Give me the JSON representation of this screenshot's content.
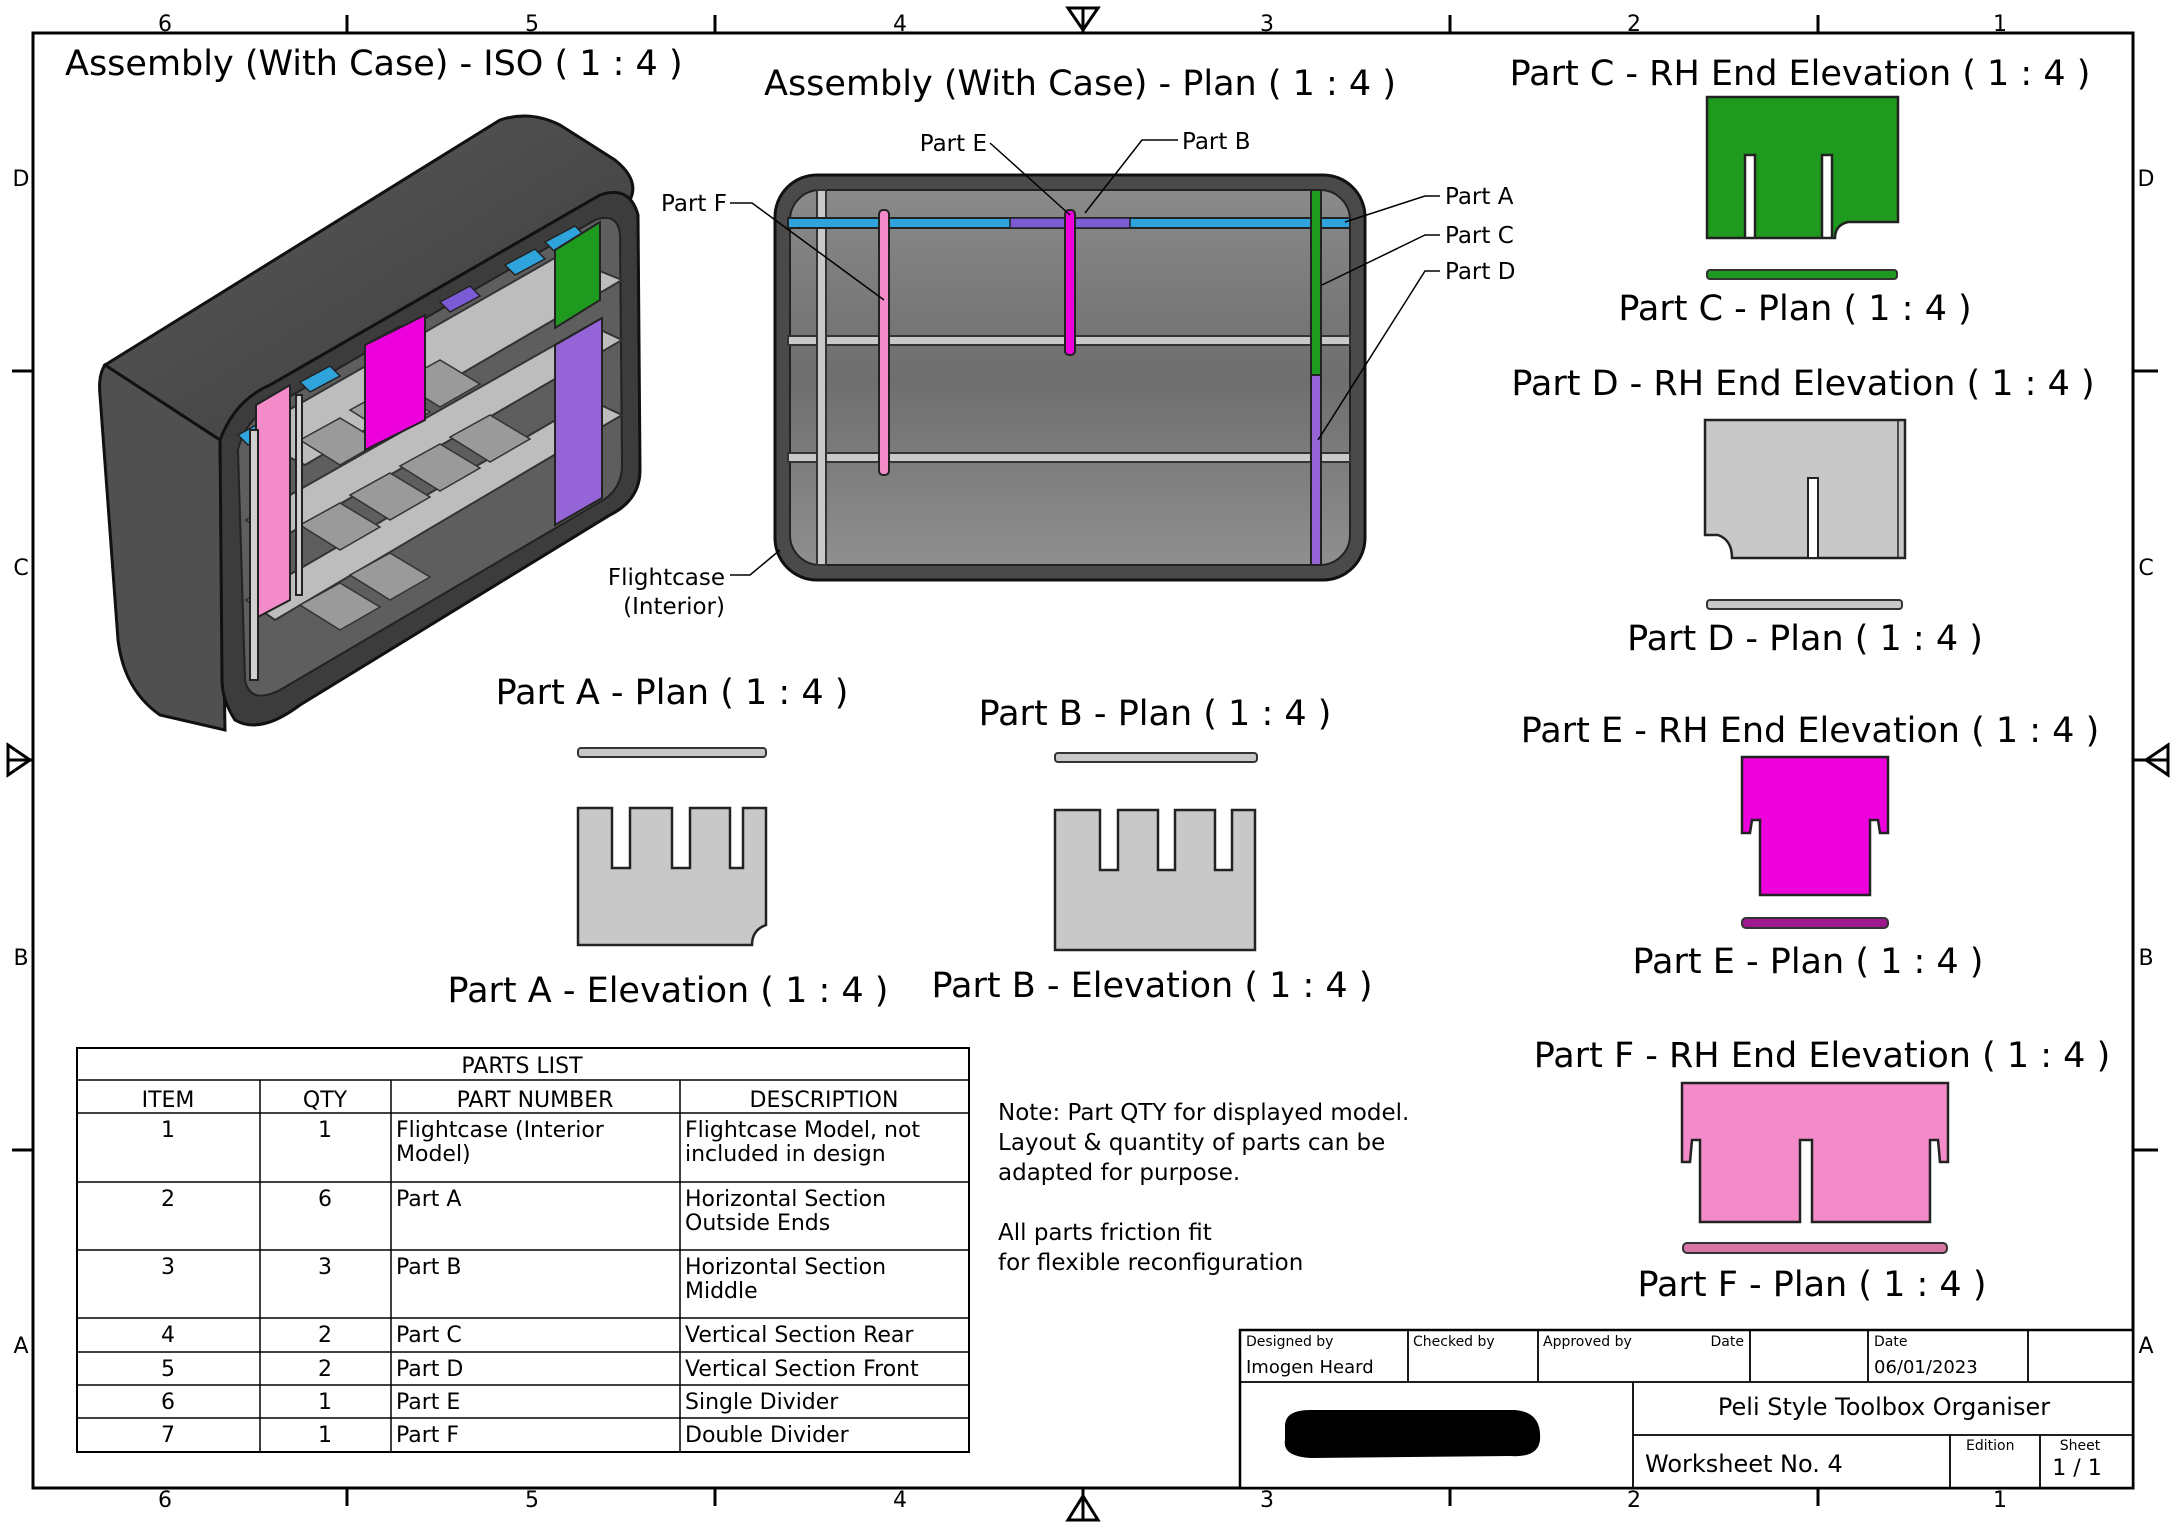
{
  "zones": {
    "columns": [
      "6",
      "5",
      "4",
      "3",
      "2",
      "1"
    ],
    "rows": [
      "D",
      "C",
      "B",
      "A"
    ]
  },
  "views": {
    "iso_title": "Assembly (With Case) - ISO ( 1 : 4 )",
    "plan_title": "Assembly (With Case) - Plan ( 1 : 4 )",
    "partA_plan": "Part A - Plan ( 1 : 4 )",
    "partA_elev": "Part A - Elevation ( 1 : 4 )",
    "partB_plan": "Part B - Plan ( 1 : 4 )",
    "partB_elev": "Part B - Elevation ( 1 : 4 )",
    "partC_end": "Part C - RH End Elevation ( 1 : 4 )",
    "partC_plan": "Part C - Plan  ( 1 : 4 )",
    "partD_end": "Part D - RH End Elevation ( 1 : 4 )",
    "partD_plan": "Part D - Plan ( 1 : 4 )",
    "partE_end": "Part E - RH End Elevation ( 1 : 4 )",
    "partE_plan": "Part E - Plan ( 1 : 4 )",
    "partF_end": "Part F - RH End Elevation ( 1 : 4 )",
    "partF_plan": "Part F - Plan ( 1 : 4 )"
  },
  "callouts": {
    "part_a": "Part A",
    "part_b": "Part B",
    "part_c": "Part C",
    "part_d": "Part D",
    "part_e": "Part E",
    "part_f": "Part F",
    "flightcase_1": "Flightcase",
    "flightcase_2": "(Interior)"
  },
  "colors": {
    "part_a": "#2fa3dc",
    "part_b": "#7b5cd6",
    "part_c": "#1e9a1e",
    "part_d": "#9565d8",
    "part_e": "#ee00dd",
    "part_f": "#f28bc8",
    "grey_part": "#c8c8c8",
    "case": "#4a4a4a"
  },
  "parts_list": {
    "title": "PARTS LIST",
    "headers": [
      "ITEM",
      "QTY",
      "PART NUMBER",
      "DESCRIPTION"
    ],
    "rows": [
      {
        "item": "1",
        "qty": "1",
        "part": [
          "Flightcase (Interior",
          "Model)"
        ],
        "desc": [
          "Flightcase Model, not",
          "included in design"
        ]
      },
      {
        "item": "2",
        "qty": "6",
        "part": [
          "Part A"
        ],
        "desc": [
          "Horizontal Section",
          "Outside Ends"
        ]
      },
      {
        "item": "3",
        "qty": "3",
        "part": [
          "Part B"
        ],
        "desc": [
          "Horizontal Section",
          "Middle"
        ]
      },
      {
        "item": "4",
        "qty": "2",
        "part": [
          "Part C"
        ],
        "desc": [
          "Vertical Section Rear"
        ]
      },
      {
        "item": "5",
        "qty": "2",
        "part": [
          "Part D"
        ],
        "desc": [
          "Vertical Section Front"
        ]
      },
      {
        "item": "6",
        "qty": "1",
        "part": [
          "Part E"
        ],
        "desc": [
          "Single Divider"
        ]
      },
      {
        "item": "7",
        "qty": "1",
        "part": [
          "Part F"
        ],
        "desc": [
          "Double Divider"
        ]
      }
    ]
  },
  "notes": {
    "line1": "Note: Part QTY for displayed model.",
    "line2": "Layout & quantity of parts can be",
    "line3": "adapted for purpose.",
    "line4": "All parts friction fit",
    "line5": "for flexible reconfiguration"
  },
  "title_block": {
    "designed_by_label": "Designed by",
    "designed_by": "Imogen Heard",
    "checked_by_label": "Checked by",
    "approved_by_label": "Approved by",
    "date_label_1": "Date",
    "date_label_2": "Date",
    "date": "06/01/2023",
    "title": "Peli Style Toolbox Organiser",
    "worksheet": "Worksheet No.  4",
    "edition_label": "Edition",
    "sheet_label": "Sheet",
    "sheet": "1 / 1"
  }
}
